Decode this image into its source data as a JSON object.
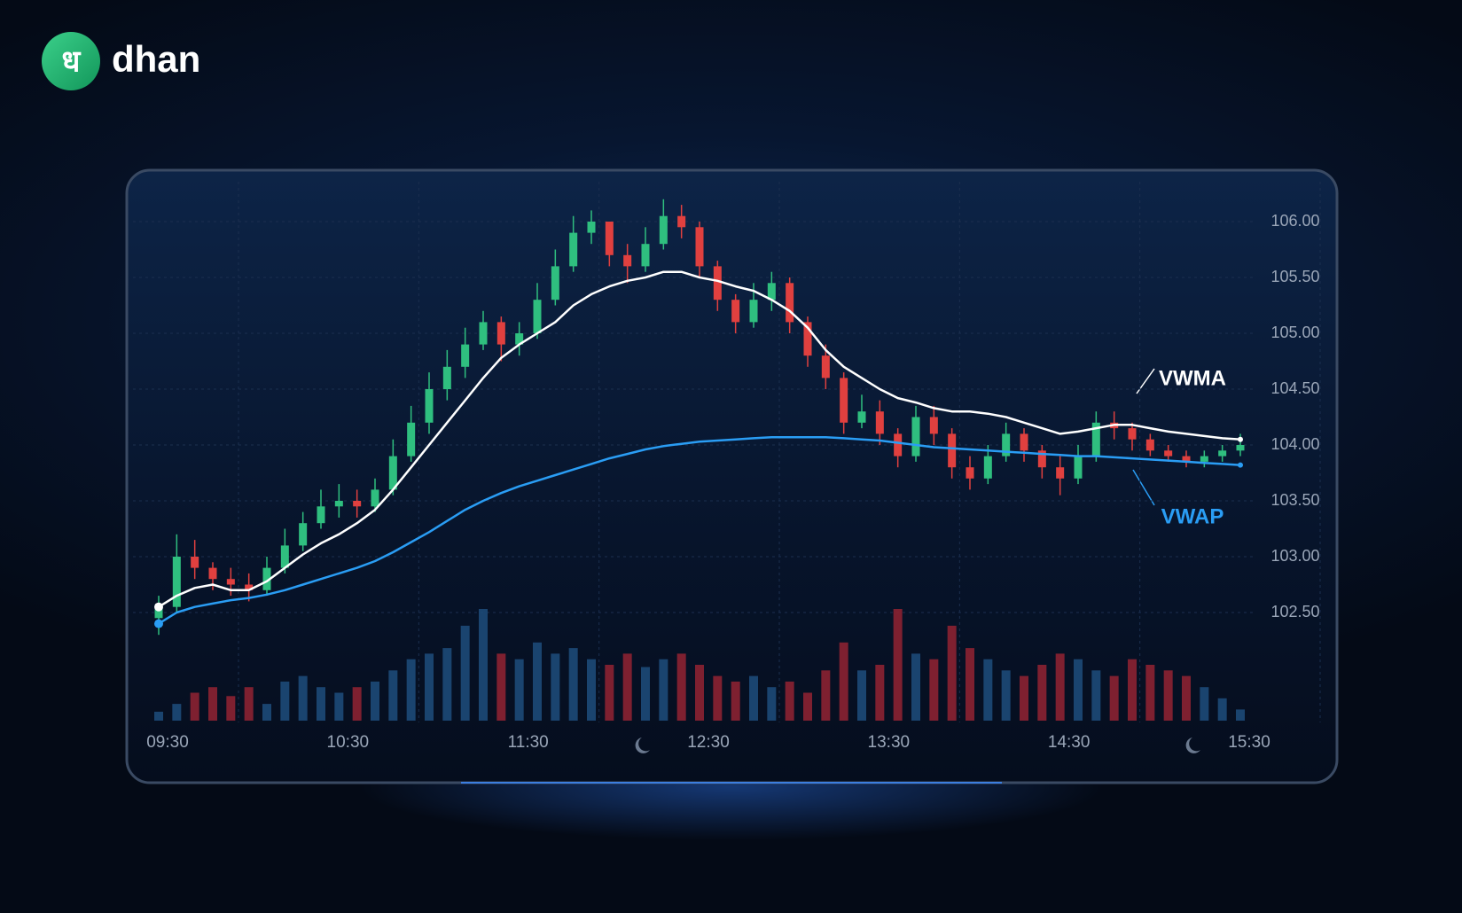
{
  "brand": {
    "glyph": "ध",
    "name": "dhan"
  },
  "chart_data": {
    "type": "candlestick",
    "categories": [
      "09:30",
      null,
      null,
      null,
      null,
      null,
      null,
      null,
      null,
      null,
      "10:30",
      null,
      null,
      null,
      null,
      null,
      null,
      null,
      null,
      null,
      "11:30",
      null,
      null,
      null,
      null,
      null,
      null,
      null,
      null,
      null,
      "12:30",
      null,
      null,
      null,
      null,
      null,
      null,
      null,
      null,
      null,
      "13:30",
      null,
      null,
      null,
      null,
      null,
      null,
      null,
      null,
      null,
      "14:30",
      null,
      null,
      null,
      null,
      null,
      null,
      null,
      null,
      null,
      "15:30"
    ],
    "open": [
      102.45,
      102.55,
      103.0,
      102.9,
      102.8,
      102.75,
      102.7,
      102.9,
      103.1,
      103.3,
      103.45,
      103.5,
      103.45,
      103.6,
      103.9,
      104.2,
      104.5,
      104.7,
      104.9,
      105.1,
      104.9,
      105.0,
      105.3,
      105.6,
      105.9,
      106.0,
      105.7,
      105.6,
      105.8,
      106.05,
      105.95,
      105.6,
      105.3,
      105.1,
      105.3,
      105.45,
      105.1,
      104.8,
      104.6,
      104.2,
      104.3,
      104.1,
      103.9,
      104.25,
      104.1,
      103.8,
      103.7,
      103.9,
      104.1,
      103.95,
      103.8,
      103.7,
      103.9,
      104.2,
      104.15,
      104.05,
      103.95,
      103.9,
      103.85,
      103.9,
      103.95
    ],
    "high": [
      102.65,
      103.2,
      103.15,
      102.95,
      102.9,
      102.85,
      103.0,
      103.25,
      103.4,
      103.6,
      103.65,
      103.6,
      103.7,
      104.05,
      104.35,
      104.65,
      104.85,
      105.05,
      105.2,
      105.15,
      105.1,
      105.45,
      105.75,
      106.05,
      106.1,
      106.0,
      105.8,
      105.95,
      106.2,
      106.15,
      106.0,
      105.65,
      105.35,
      105.45,
      105.55,
      105.5,
      105.15,
      104.9,
      104.65,
      104.45,
      104.4,
      104.15,
      104.35,
      104.35,
      104.15,
      103.9,
      104.0,
      104.2,
      104.15,
      104.0,
      103.9,
      104.0,
      104.3,
      104.3,
      104.2,
      104.1,
      104.0,
      103.95,
      103.95,
      104.0,
      104.1
    ],
    "low": [
      102.3,
      102.5,
      102.8,
      102.7,
      102.65,
      102.6,
      102.65,
      102.85,
      103.05,
      103.25,
      103.35,
      103.35,
      103.4,
      103.55,
      103.85,
      104.1,
      104.4,
      104.6,
      104.85,
      104.75,
      104.8,
      104.95,
      105.25,
      105.55,
      105.8,
      105.6,
      105.45,
      105.55,
      105.75,
      105.85,
      105.5,
      105.2,
      105.0,
      105.05,
      105.2,
      105.0,
      104.7,
      104.5,
      104.1,
      104.15,
      104.0,
      103.8,
      103.85,
      104.0,
      103.7,
      103.6,
      103.65,
      103.85,
      103.85,
      103.7,
      103.55,
      103.65,
      103.85,
      104.05,
      103.95,
      103.9,
      103.85,
      103.8,
      103.8,
      103.85,
      103.9
    ],
    "close": [
      102.55,
      103.0,
      102.9,
      102.8,
      102.75,
      102.7,
      102.9,
      103.1,
      103.3,
      103.45,
      103.5,
      103.45,
      103.6,
      103.9,
      104.2,
      104.5,
      104.7,
      104.9,
      105.1,
      104.9,
      105.0,
      105.3,
      105.6,
      105.9,
      106.0,
      105.7,
      105.6,
      105.8,
      106.05,
      105.95,
      105.6,
      105.3,
      105.1,
      105.3,
      105.45,
      105.1,
      104.8,
      104.6,
      104.2,
      104.3,
      104.1,
      103.9,
      104.25,
      104.1,
      103.8,
      103.7,
      103.9,
      104.1,
      103.95,
      103.8,
      103.7,
      103.9,
      104.2,
      104.15,
      104.05,
      103.95,
      103.9,
      103.85,
      103.9,
      103.95,
      104.0
    ],
    "volume": [
      8,
      15,
      25,
      30,
      22,
      30,
      15,
      35,
      40,
      30,
      25,
      30,
      35,
      45,
      55,
      60,
      65,
      85,
      100,
      60,
      55,
      70,
      60,
      65,
      55,
      50,
      60,
      48,
      55,
      60,
      50,
      40,
      35,
      40,
      30,
      35,
      25,
      45,
      70,
      45,
      50,
      100,
      60,
      55,
      85,
      65,
      55,
      45,
      40,
      50,
      60,
      55,
      45,
      40,
      55,
      50,
      45,
      40,
      30,
      20,
      10
    ],
    "series": [
      {
        "name": "VWMA",
        "color": "#ffffff",
        "values": [
          102.55,
          102.65,
          102.72,
          102.75,
          102.7,
          102.7,
          102.78,
          102.9,
          103.02,
          103.12,
          103.2,
          103.3,
          103.42,
          103.6,
          103.8,
          104.0,
          104.2,
          104.4,
          104.6,
          104.78,
          104.9,
          105.0,
          105.1,
          105.25,
          105.35,
          105.42,
          105.47,
          105.5,
          105.55,
          105.55,
          105.5,
          105.47,
          105.42,
          105.38,
          105.3,
          105.2,
          105.05,
          104.85,
          104.7,
          104.6,
          104.5,
          104.42,
          104.38,
          104.33,
          104.3,
          104.3,
          104.28,
          104.25,
          104.2,
          104.15,
          104.1,
          104.12,
          104.15,
          104.18,
          104.18,
          104.15,
          104.12,
          104.1,
          104.08,
          104.06,
          104.05
        ]
      },
      {
        "name": "VWAP",
        "color": "#2a9df4",
        "values": [
          102.4,
          102.5,
          102.55,
          102.58,
          102.61,
          102.63,
          102.66,
          102.7,
          102.75,
          102.8,
          102.85,
          102.9,
          102.96,
          103.04,
          103.13,
          103.22,
          103.32,
          103.42,
          103.5,
          103.57,
          103.63,
          103.68,
          103.73,
          103.78,
          103.83,
          103.88,
          103.92,
          103.96,
          103.99,
          104.01,
          104.03,
          104.04,
          104.05,
          104.06,
          104.07,
          104.07,
          104.07,
          104.07,
          104.06,
          104.05,
          104.04,
          104.02,
          104.0,
          103.98,
          103.97,
          103.96,
          103.95,
          103.94,
          103.93,
          103.92,
          103.91,
          103.9,
          103.9,
          103.89,
          103.88,
          103.87,
          103.86,
          103.85,
          103.84,
          103.83,
          103.82
        ]
      }
    ],
    "ylim": [
      102.3,
      106.2
    ],
    "yticks": [
      {
        "value": 106,
        "label": "106.00"
      },
      {
        "value": 105.5,
        "label": "105.50"
      },
      {
        "value": 105,
        "label": "105.00"
      },
      {
        "value": 104.5,
        "label": "104.50"
      },
      {
        "value": 104,
        "label": "104.00"
      },
      {
        "value": 103.5,
        "label": "103.50"
      },
      {
        "value": 103,
        "label": "103.00"
      },
      {
        "value": 102.5,
        "label": "102.50"
      }
    ],
    "grid": true,
    "colors": {
      "up": "#2fbf7f",
      "down": "#e0403f",
      "up_volume": "#1d4a78",
      "down_volume": "#8c2232"
    }
  }
}
